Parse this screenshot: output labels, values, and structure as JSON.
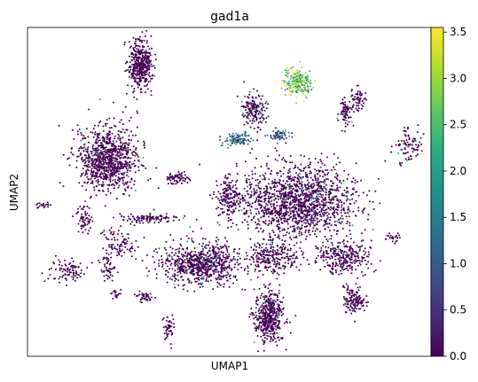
{
  "chart_data": {
    "type": "scatter",
    "title": "gad1a",
    "xlabel": "UMAP1",
    "ylabel": "UMAP2",
    "x_ticks_shown": false,
    "y_ticks_shown": false,
    "grid": false,
    "colormap": "viridis",
    "colorbar": {
      "min": 0.0,
      "max": 3.55,
      "ticks": [
        "0.0",
        "0.5",
        "1.0",
        "1.5",
        "2.0",
        "2.5",
        "3.0",
        "3.5"
      ]
    },
    "series": [
      {
        "clusters": [
          {
            "cx": 0.28,
            "cy": 0.89,
            "rx": 0.025,
            "ry": 0.06,
            "n": 420,
            "expr": 0.02
          },
          {
            "cx": 0.67,
            "cy": 0.83,
            "rx": 0.03,
            "ry": 0.035,
            "n": 220,
            "expr": 2.6
          },
          {
            "cx": 0.56,
            "cy": 0.75,
            "rx": 0.025,
            "ry": 0.04,
            "n": 170,
            "expr": 0.15
          },
          {
            "cx": 0.52,
            "cy": 0.66,
            "rx": 0.03,
            "ry": 0.015,
            "n": 110,
            "expr": 1.0
          },
          {
            "cx": 0.62,
            "cy": 0.67,
            "rx": 0.02,
            "ry": 0.015,
            "n": 70,
            "expr": 1.1
          },
          {
            "cx": 0.79,
            "cy": 0.74,
            "rx": 0.015,
            "ry": 0.03,
            "n": 70,
            "expr": 0.05
          },
          {
            "cx": 0.94,
            "cy": 0.64,
            "rx": 0.035,
            "ry": 0.05,
            "n": 90,
            "expr": 0.05
          },
          {
            "cx": 0.2,
            "cy": 0.6,
            "rx": 0.06,
            "ry": 0.08,
            "n": 900,
            "expr": 0.05
          },
          {
            "cx": 0.37,
            "cy": 0.54,
            "rx": 0.025,
            "ry": 0.015,
            "n": 70,
            "expr": 0.05
          },
          {
            "cx": 0.67,
            "cy": 0.47,
            "rx": 0.12,
            "ry": 0.09,
            "n": 1500,
            "expr": 0.08
          },
          {
            "cx": 0.5,
            "cy": 0.48,
            "rx": 0.025,
            "ry": 0.05,
            "n": 150,
            "expr": 0.05
          },
          {
            "cx": 0.3,
            "cy": 0.42,
            "rx": 0.06,
            "ry": 0.012,
            "n": 110,
            "expr": 0.03
          },
          {
            "cx": 0.14,
            "cy": 0.42,
            "rx": 0.015,
            "ry": 0.035,
            "n": 60,
            "expr": 0.03
          },
          {
            "cx": 0.23,
            "cy": 0.34,
            "rx": 0.04,
            "ry": 0.04,
            "n": 90,
            "expr": 0.03
          },
          {
            "cx": 0.43,
            "cy": 0.28,
            "rx": 0.08,
            "ry": 0.05,
            "n": 750,
            "expr": 0.1
          },
          {
            "cx": 0.61,
            "cy": 0.3,
            "rx": 0.05,
            "ry": 0.04,
            "n": 250,
            "expr": 0.05
          },
          {
            "cx": 0.78,
            "cy": 0.3,
            "rx": 0.06,
            "ry": 0.04,
            "n": 280,
            "expr": 0.05
          },
          {
            "cx": 0.1,
            "cy": 0.26,
            "rx": 0.04,
            "ry": 0.03,
            "n": 90,
            "expr": 0.03
          },
          {
            "cx": 0.2,
            "cy": 0.27,
            "rx": 0.015,
            "ry": 0.035,
            "n": 50,
            "expr": 0.03
          },
          {
            "cx": 0.6,
            "cy": 0.12,
            "rx": 0.03,
            "ry": 0.065,
            "n": 430,
            "expr": 0.02
          },
          {
            "cx": 0.81,
            "cy": 0.17,
            "rx": 0.022,
            "ry": 0.035,
            "n": 140,
            "expr": 0.02
          },
          {
            "cx": 0.35,
            "cy": 0.09,
            "rx": 0.01,
            "ry": 0.035,
            "n": 50,
            "expr": 0.02
          },
          {
            "cx": 0.29,
            "cy": 0.18,
            "rx": 0.018,
            "ry": 0.012,
            "n": 40,
            "expr": 0.02
          },
          {
            "cx": 0.82,
            "cy": 0.78,
            "rx": 0.016,
            "ry": 0.03,
            "n": 60,
            "expr": 0.02
          },
          {
            "cx": 0.04,
            "cy": 0.46,
            "rx": 0.015,
            "ry": 0.008,
            "n": 20,
            "expr": 0.02
          },
          {
            "cx": 0.22,
            "cy": 0.19,
            "rx": 0.01,
            "ry": 0.012,
            "n": 20,
            "expr": 0.02
          },
          {
            "cx": 0.91,
            "cy": 0.36,
            "rx": 0.02,
            "ry": 0.01,
            "n": 25,
            "expr": 0.02
          }
        ]
      }
    ]
  }
}
